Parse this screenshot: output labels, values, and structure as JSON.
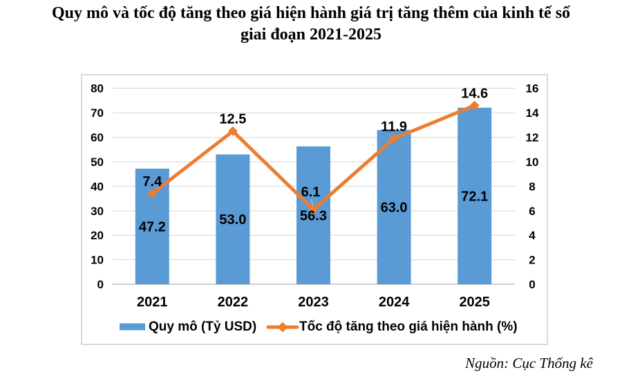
{
  "title": {
    "line1": "Quy mô và tốc độ tăng theo giá hiện hành giá trị tăng thêm của kinh tế số",
    "line2": "giai đoạn 2021-2025"
  },
  "source": "Nguồn: Cục Thống kê",
  "colors": {
    "bar": "#5B9BD5",
    "line": "#ED7D31",
    "grid": "#D9D9D9",
    "axis_line": "#BFBFBF",
    "leader": "#CBBA9E",
    "text": "#000000",
    "panel_border": "#D9D9D9"
  },
  "chart_data": {
    "type": "bar+line",
    "title": "Quy mô và tốc độ tăng theo giá hiện hành giá trị tăng thêm của kinh tế số giai đoạn 2021-2025",
    "categories": [
      "2021",
      "2022",
      "2023",
      "2024",
      "2025"
    ],
    "series": [
      {
        "name": "Quy mô (Tỷ USD)",
        "type": "bar",
        "axis": "left",
        "values": [
          47.2,
          53.0,
          56.3,
          63.0,
          72.1
        ],
        "labels": [
          "47.2",
          "53.0",
          "56.3",
          "63.0",
          "72.1"
        ]
      },
      {
        "name": "Tốc độ tăng theo giá hiện hành (%)",
        "type": "line",
        "axis": "right",
        "values": [
          7.4,
          12.5,
          6.1,
          11.9,
          14.6
        ],
        "labels": [
          "7.4",
          "12.5",
          "6.1",
          "11.9",
          "14.6"
        ]
      }
    ],
    "left_axis": {
      "min": 0,
      "max": 80,
      "step": 10,
      "ticks": [
        0,
        10,
        20,
        30,
        40,
        50,
        60,
        70,
        80
      ]
    },
    "right_axis": {
      "min": 0,
      "max": 16,
      "step": 2,
      "ticks": [
        0,
        2,
        4,
        6,
        8,
        10,
        12,
        14,
        16
      ]
    },
    "legend": [
      "Quy mô (Tỷ USD)",
      "Tốc độ tăng theo giá hiện hành (%)"
    ],
    "grid": true,
    "legend_position": "bottom"
  }
}
